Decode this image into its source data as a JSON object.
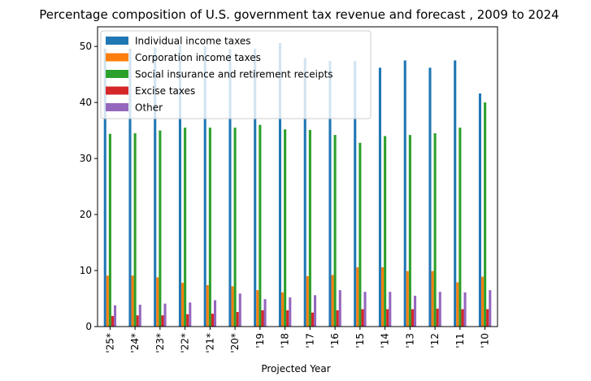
{
  "chart_data": {
    "type": "bar",
    "title": "Percentage composition of U.S. government tax revenue and forecast , 2009 to 2024",
    "xlabel": "Projected Year",
    "ylabel": "",
    "ylim": [
      0,
      53.5
    ],
    "yticks": [
      0,
      10,
      20,
      30,
      40,
      50
    ],
    "grid": false,
    "legend_position": "top-left",
    "categories": [
      "'25*",
      "'24*",
      "'23*",
      "'22*",
      "'21*",
      "'20*",
      "'19",
      "'18",
      "'17",
      "'16",
      "'15",
      "'14",
      "'13",
      "'12",
      "'11",
      "'10"
    ],
    "series": [
      {
        "name": "Individual income taxes",
        "color": "#1f77b4",
        "values": [
          49.6,
          49.6,
          49.8,
          50.2,
          50.0,
          49.5,
          49.6,
          50.6,
          47.9,
          47.4,
          47.4,
          46.2,
          47.5,
          46.2,
          47.5,
          41.6
        ]
      },
      {
        "name": "Corporation income taxes",
        "color": "#ff7f0e",
        "values": [
          9.1,
          9.1,
          8.8,
          7.8,
          7.4,
          7.2,
          6.5,
          6.1,
          9.0,
          9.2,
          10.6,
          10.6,
          9.9,
          9.9,
          7.9,
          8.9
        ]
      },
      {
        "name": "Social insurance and retirement receipts",
        "color": "#2ca02c",
        "values": [
          34.4,
          34.5,
          35.0,
          35.5,
          35.5,
          35.5,
          36.0,
          35.2,
          35.1,
          34.2,
          32.8,
          34.0,
          34.2,
          34.5,
          35.5,
          40.0
        ]
      },
      {
        "name": "Excise taxes",
        "color": "#d62728",
        "values": [
          1.9,
          2.0,
          2.0,
          2.2,
          2.3,
          2.6,
          2.9,
          2.9,
          2.5,
          2.9,
          3.1,
          3.1,
          3.1,
          3.2,
          3.1,
          3.1
        ]
      },
      {
        "name": "Other",
        "color": "#9467bd",
        "values": [
          3.8,
          3.9,
          4.1,
          4.3,
          4.7,
          5.9,
          4.9,
          5.2,
          5.6,
          6.5,
          6.2,
          6.2,
          5.5,
          6.2,
          6.1,
          6.5
        ]
      }
    ]
  }
}
